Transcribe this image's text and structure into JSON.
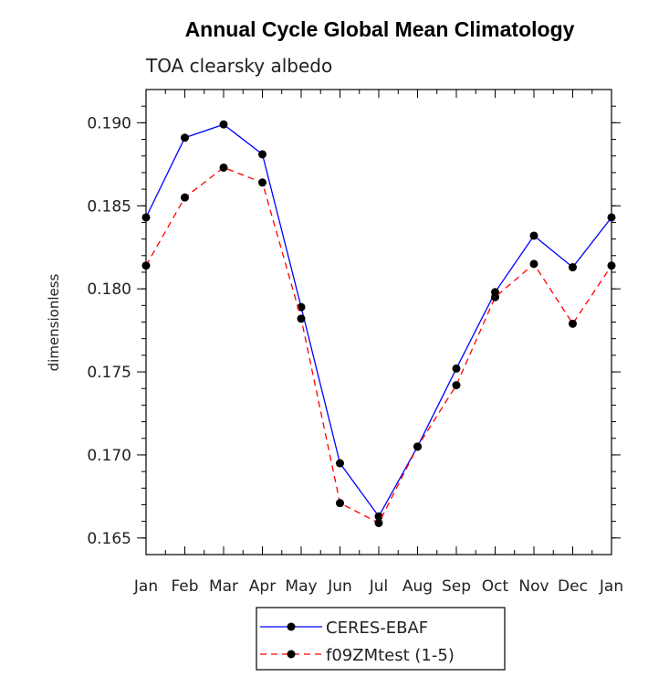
{
  "chart_data": {
    "type": "line",
    "title": "Annual Cycle Global Mean Climatology",
    "subtitle": "TOA clearsky albedo",
    "xlabel": "",
    "ylabel": "dimensionless",
    "categories": [
      "Jan",
      "Feb",
      "Mar",
      "Apr",
      "May",
      "Jun",
      "Jul",
      "Aug",
      "Sep",
      "Oct",
      "Nov",
      "Dec",
      "Jan"
    ],
    "ylim": [
      0.164,
      0.192
    ],
    "yticks": [
      "0.165",
      "0.170",
      "0.175",
      "0.180",
      "0.185",
      "0.190"
    ],
    "series": [
      {
        "name": "CERES-EBAF",
        "color": "#0000ff",
        "dashed": false,
        "values": [
          0.1843,
          0.1891,
          0.1899,
          0.1881,
          0.1789,
          0.1695,
          0.1663,
          0.1705,
          0.1752,
          0.1798,
          0.1832,
          0.1813,
          0.1843
        ]
      },
      {
        "name": "f09ZMtest (1-5)",
        "color": "#ff0000",
        "dashed": true,
        "values": [
          0.1814,
          0.1855,
          0.1873,
          0.1864,
          0.1782,
          0.1671,
          0.1659,
          0.1705,
          0.1742,
          0.1795,
          0.1815,
          0.1779,
          0.1814
        ]
      }
    ],
    "legend_position": "bottom-center"
  }
}
